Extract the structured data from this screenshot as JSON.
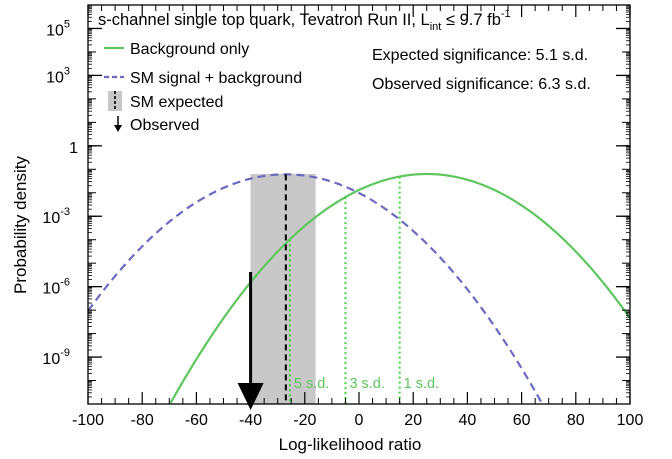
{
  "chart_data": {
    "type": "line",
    "title": "s-channel single top quark, Tevatron Run II, L",
    "title_sub": "int",
    "title_suffix": " ≤ 9.7 fb",
    "title_sup": "-1",
    "xlabel": "Log-likelihood ratio",
    "ylabel": "Probability density",
    "xlim": [
      -100,
      100
    ],
    "ylim_log10": [
      -11,
      6
    ],
    "y_scale": "log",
    "x_ticks": [
      -100,
      -80,
      -60,
      -40,
      -20,
      0,
      20,
      40,
      60,
      80,
      100
    ],
    "x_tick_labels": [
      "-100",
      "-80",
      "-60",
      "-40",
      "-20",
      "0",
      "20",
      "40",
      "60",
      "80",
      "100"
    ],
    "y_ticks": [
      {
        "exp": 5,
        "base": "10",
        "sup": "5"
      },
      {
        "exp": 3,
        "base": "10",
        "sup": "3"
      },
      {
        "exp": 0,
        "base": "1",
        "sup": ""
      },
      {
        "exp": -3,
        "base": "10",
        "sup": "-3"
      },
      {
        "exp": -6,
        "base": "10",
        "sup": "-6"
      },
      {
        "exp": -9,
        "base": "10",
        "sup": "-9"
      }
    ],
    "series": [
      {
        "name": "Background only",
        "color": "#5fc65f",
        "style": "solid",
        "gaussian": {
          "mean": 25,
          "peak": 0.063,
          "sigma": 14.1
        }
      },
      {
        "name": "SM signal + background",
        "color": "#6a6ac0",
        "style": "dashed",
        "gaussian": {
          "mean": -27,
          "peak": 0.061,
          "sigma": 14.1
        }
      }
    ],
    "sm_expected_band": {
      "label": "SM expected",
      "x_range": [
        -40,
        -16
      ],
      "median": -27,
      "color": "#c8c8c8"
    },
    "observed": {
      "label": "Observed",
      "x": -40
    },
    "sigma_lines": [
      {
        "x": -25.5,
        "label": "5 s.d."
      },
      {
        "x": -5,
        "label": "3 s.d."
      },
      {
        "x": 15,
        "label": "1 s.d."
      }
    ],
    "annotations": [
      "Expected significance: 5.1 s.d.",
      "Observed significance: 6.3 s.d."
    ],
    "legend": [
      "Background only",
      "SM signal + background",
      "SM expected",
      "Observed"
    ],
    "legend_position": "top-left"
  }
}
